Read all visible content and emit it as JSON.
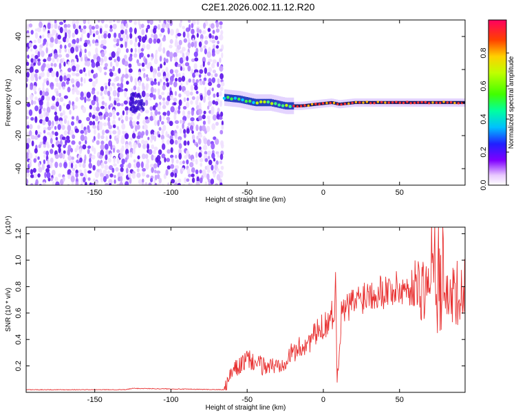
{
  "title": "C2E1.2026.002.11.12.R20",
  "chart_data": [
    {
      "type": "heatmap",
      "name": "spectrogram",
      "xlabel": "Height of straight line (km)",
      "ylabel": "Frequency (Hz)",
      "xlim": [
        -195,
        93
      ],
      "ylim": [
        -50,
        50
      ],
      "x_ticks": [
        -150,
        -100,
        -50,
        0,
        50
      ],
      "y_ticks": [
        -40,
        -20,
        0,
        20,
        40
      ],
      "noise_region_x": [
        -195,
        -65
      ],
      "trace": [
        {
          "x": -65,
          "y": 3
        },
        {
          "x": -55,
          "y": 2
        },
        {
          "x": -45,
          "y": 0
        },
        {
          "x": -35,
          "y": 0
        },
        {
          "x": -25,
          "y": -2
        },
        {
          "x": -15,
          "y": -2
        },
        {
          "x": -5,
          "y": -1
        },
        {
          "x": 5,
          "y": 0
        },
        {
          "x": 10,
          "y": -1
        },
        {
          "x": 20,
          "y": 0
        },
        {
          "x": 50,
          "y": 0
        },
        {
          "x": 93,
          "y": 0
        }
      ],
      "colorbar": {
        "label": "Normalized spectral amplitude",
        "range": [
          0,
          1
        ],
        "ticks": [
          "0.0",
          "0.2",
          "0.4",
          "0.6",
          "0.8"
        ],
        "tick_values": [
          0,
          0.2,
          0.4,
          0.6,
          0.8
        ]
      }
    },
    {
      "type": "line",
      "name": "snr",
      "xlabel": "Height of straight line (km)",
      "ylabel": "SNR (10 * v/v)",
      "scale_note": "(x10⁴)",
      "xlim": [
        -195,
        93
      ],
      "ylim": [
        0,
        1.25
      ],
      "x_ticks": [
        -150,
        -100,
        -50,
        0,
        50
      ],
      "y_ticks": [
        0.2,
        0.4,
        0.6,
        0.8,
        1.0,
        1.2
      ],
      "y_tick_labels": [
        "0.2",
        "0.4",
        "0.6",
        "0.8",
        "1.0",
        "1.2"
      ],
      "color": "#e83030",
      "envelope": [
        {
          "x": -195,
          "y": 0.02
        },
        {
          "x": -130,
          "y": 0.02
        },
        {
          "x": -125,
          "y": 0.03
        },
        {
          "x": -65,
          "y": 0.02
        },
        {
          "x": -60,
          "y": 0.15
        },
        {
          "x": -50,
          "y": 0.25
        },
        {
          "x": -40,
          "y": 0.2
        },
        {
          "x": -30,
          "y": 0.2
        },
        {
          "x": -20,
          "y": 0.3
        },
        {
          "x": -10,
          "y": 0.38
        },
        {
          "x": 0,
          "y": 0.5
        },
        {
          "x": 7,
          "y": 0.6
        },
        {
          "x": 8,
          "y": 0.85
        },
        {
          "x": 9,
          "y": 0.1
        },
        {
          "x": 12,
          "y": 0.6
        },
        {
          "x": 20,
          "y": 0.68
        },
        {
          "x": 30,
          "y": 0.76
        },
        {
          "x": 50,
          "y": 0.78
        },
        {
          "x": 70,
          "y": 0.8
        },
        {
          "x": 80,
          "y": 0.9
        },
        {
          "x": 85,
          "y": 0.7
        },
        {
          "x": 93,
          "y": 0.85
        }
      ]
    }
  ]
}
